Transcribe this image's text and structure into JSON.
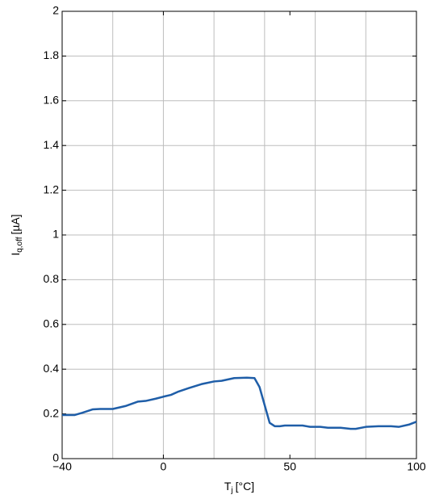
{
  "chart_data": {
    "type": "line",
    "x_label": [
      "T",
      "j",
      "[°C]"
    ],
    "y_label": [
      "I",
      "q,off",
      "[µA]"
    ],
    "x": [
      -40,
      -35,
      -32,
      -28,
      -25,
      -20,
      -15,
      -10,
      -7,
      -3,
      0,
      3,
      6,
      10,
      15,
      20,
      23,
      28,
      33,
      36,
      38,
      40,
      42,
      44,
      46,
      48,
      55,
      58,
      62,
      65,
      70,
      74,
      76,
      80,
      85,
      90,
      93,
      97,
      100
    ],
    "series": [
      {
        "color": "#1f5ea8",
        "values": [
          0.195,
          0.195,
          0.205,
          0.22,
          0.222,
          0.222,
          0.235,
          0.255,
          0.258,
          0.268,
          0.277,
          0.285,
          0.3,
          0.315,
          0.333,
          0.345,
          0.348,
          0.36,
          0.362,
          0.36,
          0.32,
          0.24,
          0.16,
          0.145,
          0.145,
          0.148,
          0.148,
          0.142,
          0.142,
          0.138,
          0.138,
          0.133,
          0.133,
          0.142,
          0.145,
          0.145,
          0.142,
          0.152,
          0.165
        ]
      }
    ],
    "xlim": [
      -40,
      100
    ],
    "xticks": [
      {
        "value": -40,
        "label": "−40"
      },
      0,
      50,
      100
    ],
    "xgrid": [
      -40,
      -20,
      0,
      20,
      40,
      60,
      80,
      100
    ],
    "ylim": [
      0,
      2
    ],
    "yticks": [
      0,
      0.2,
      0.4,
      0.6,
      0.8,
      1,
      1.2,
      1.4,
      1.6,
      1.8,
      2
    ],
    "grid": true
  }
}
